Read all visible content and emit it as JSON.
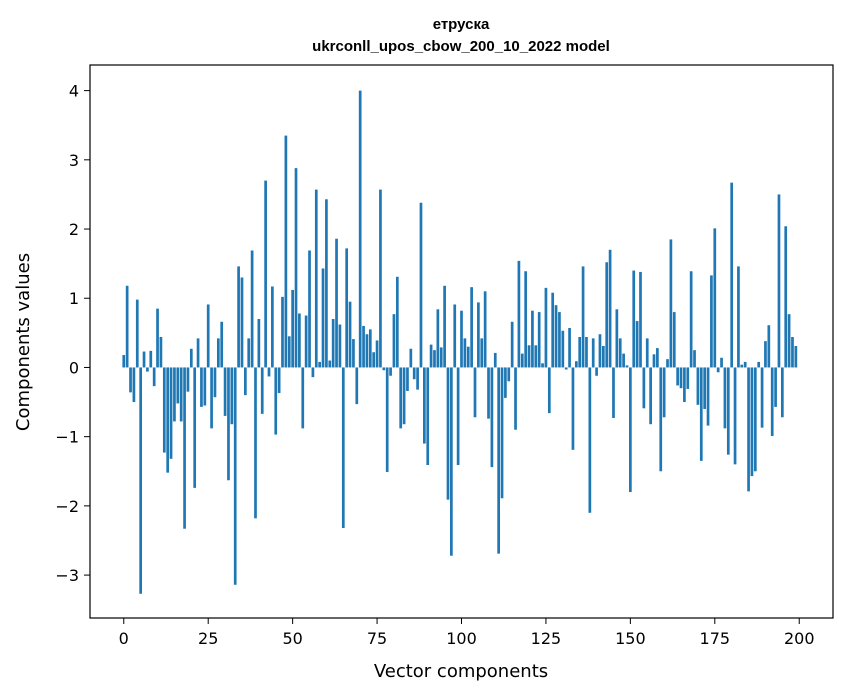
{
  "chart_data": {
    "type": "bar",
    "title": "етруска",
    "subtitle": "ukrconll_upos_cbow_200_10_2022 model",
    "xlabel": "Vector components",
    "ylabel": "Components values",
    "xlim": [
      -10,
      210
    ],
    "ylim": [
      -3.62,
      4.37
    ],
    "xticks": [
      0,
      25,
      50,
      75,
      100,
      125,
      150,
      175,
      200
    ],
    "yticks": [
      -3,
      -2,
      -1,
      0,
      1,
      2,
      3,
      4
    ],
    "grid": false,
    "bar_color": "#1f77b4",
    "x": [
      0,
      1,
      2,
      3,
      4,
      5,
      6,
      7,
      8,
      9,
      10,
      11,
      12,
      13,
      14,
      15,
      16,
      17,
      18,
      19,
      20,
      21,
      22,
      23,
      24,
      25,
      26,
      27,
      28,
      29,
      30,
      31,
      32,
      33,
      34,
      35,
      36,
      37,
      38,
      39,
      40,
      41,
      42,
      43,
      44,
      45,
      46,
      47,
      48,
      49,
      50,
      51,
      52,
      53,
      54,
      55,
      56,
      57,
      58,
      59,
      60,
      61,
      62,
      63,
      64,
      65,
      66,
      67,
      68,
      69,
      70,
      71,
      72,
      73,
      74,
      75,
      76,
      77,
      78,
      79,
      80,
      81,
      82,
      83,
      84,
      85,
      86,
      87,
      88,
      89,
      90,
      91,
      92,
      93,
      94,
      95,
      96,
      97,
      98,
      99,
      100,
      101,
      102,
      103,
      104,
      105,
      106,
      107,
      108,
      109,
      110,
      111,
      112,
      113,
      114,
      115,
      116,
      117,
      118,
      119,
      120,
      121,
      122,
      123,
      124,
      125,
      126,
      127,
      128,
      129,
      130,
      131,
      132,
      133,
      134,
      135,
      136,
      137,
      138,
      139,
      140,
      141,
      142,
      143,
      144,
      145,
      146,
      147,
      148,
      149,
      150,
      151,
      152,
      153,
      154,
      155,
      156,
      157,
      158,
      159,
      160,
      161,
      162,
      163,
      164,
      165,
      166,
      167,
      168,
      169,
      170,
      171,
      172,
      173,
      174,
      175,
      176,
      177,
      178,
      179,
      180,
      181,
      182,
      183,
      184,
      185,
      186,
      187,
      188,
      189,
      190,
      191,
      192,
      193,
      194,
      195,
      196,
      197,
      198,
      199
    ],
    "values": [
      0.18,
      1.18,
      -0.36,
      -0.5,
      0.98,
      -3.27,
      0.23,
      -0.06,
      0.24,
      -0.27,
      0.85,
      0.44,
      -1.23,
      -1.52,
      -1.32,
      -0.78,
      -0.52,
      -0.78,
      -2.33,
      -0.35,
      0.27,
      -1.74,
      0.42,
      -0.57,
      -0.55,
      0.91,
      -0.88,
      -0.43,
      0.42,
      0.66,
      -0.7,
      -1.63,
      -0.82,
      -3.14,
      1.46,
      1.3,
      -0.4,
      0.42,
      1.69,
      -2.18,
      0.7,
      -0.67,
      2.7,
      -0.13,
      1.17,
      -0.97,
      -0.37,
      1.02,
      3.35,
      0.45,
      1.12,
      2.88,
      0.78,
      -0.88,
      0.75,
      1.69,
      -0.14,
      2.57,
      0.08,
      1.43,
      2.43,
      0.1,
      0.7,
      1.86,
      0.62,
      -2.32,
      1.72,
      0.95,
      0.41,
      -0.53,
      4.0,
      0.6,
      0.48,
      0.55,
      0.22,
      0.39,
      2.57,
      -0.04,
      -1.51,
      -0.12,
      0.77,
      1.31,
      -0.88,
      -0.82,
      -0.34,
      0.27,
      -0.17,
      -0.32,
      2.38,
      -1.1,
      -1.41,
      0.33,
      0.25,
      0.84,
      0.29,
      1.18,
      -1.91,
      -2.72,
      0.91,
      -1.41,
      0.82,
      0.42,
      0.3,
      1.16,
      -0.72,
      0.94,
      0.42,
      1.1,
      -0.74,
      -1.44,
      0.21,
      -2.69,
      -1.89,
      -0.44,
      -0.2,
      0.66,
      -0.9,
      1.54,
      0.2,
      1.39,
      0.32,
      0.82,
      0.32,
      0.8,
      0.06,
      1.15,
      -0.66,
      1.08,
      0.9,
      0.8,
      0.53,
      -0.03,
      0.57,
      -1.19,
      0.09,
      0.44,
      1.46,
      0.44,
      -2.1,
      0.42,
      -0.12,
      0.48,
      0.31,
      1.52,
      1.7,
      -0.73,
      0.84,
      0.42,
      0.2,
      0.03,
      -1.8,
      1.4,
      0.67,
      1.38,
      -0.59,
      0.42,
      -0.82,
      0.19,
      0.28,
      -1.5,
      -0.72,
      0.12,
      1.85,
      0.8,
      -0.26,
      -0.3,
      -0.5,
      -0.31,
      1.39,
      0.25,
      -0.54,
      -1.35,
      -0.6,
      -0.84,
      1.33,
      2.01,
      -0.07,
      0.14,
      -0.88,
      -1.26,
      2.67,
      -1.4,
      1.46,
      0.04,
      0.08,
      -1.79,
      -1.57,
      -1.5,
      0.08,
      -0.87,
      0.38,
      0.61,
      -0.99,
      -0.57,
      2.5,
      -0.72,
      2.04,
      0.77,
      0.44,
      0.31
    ]
  }
}
